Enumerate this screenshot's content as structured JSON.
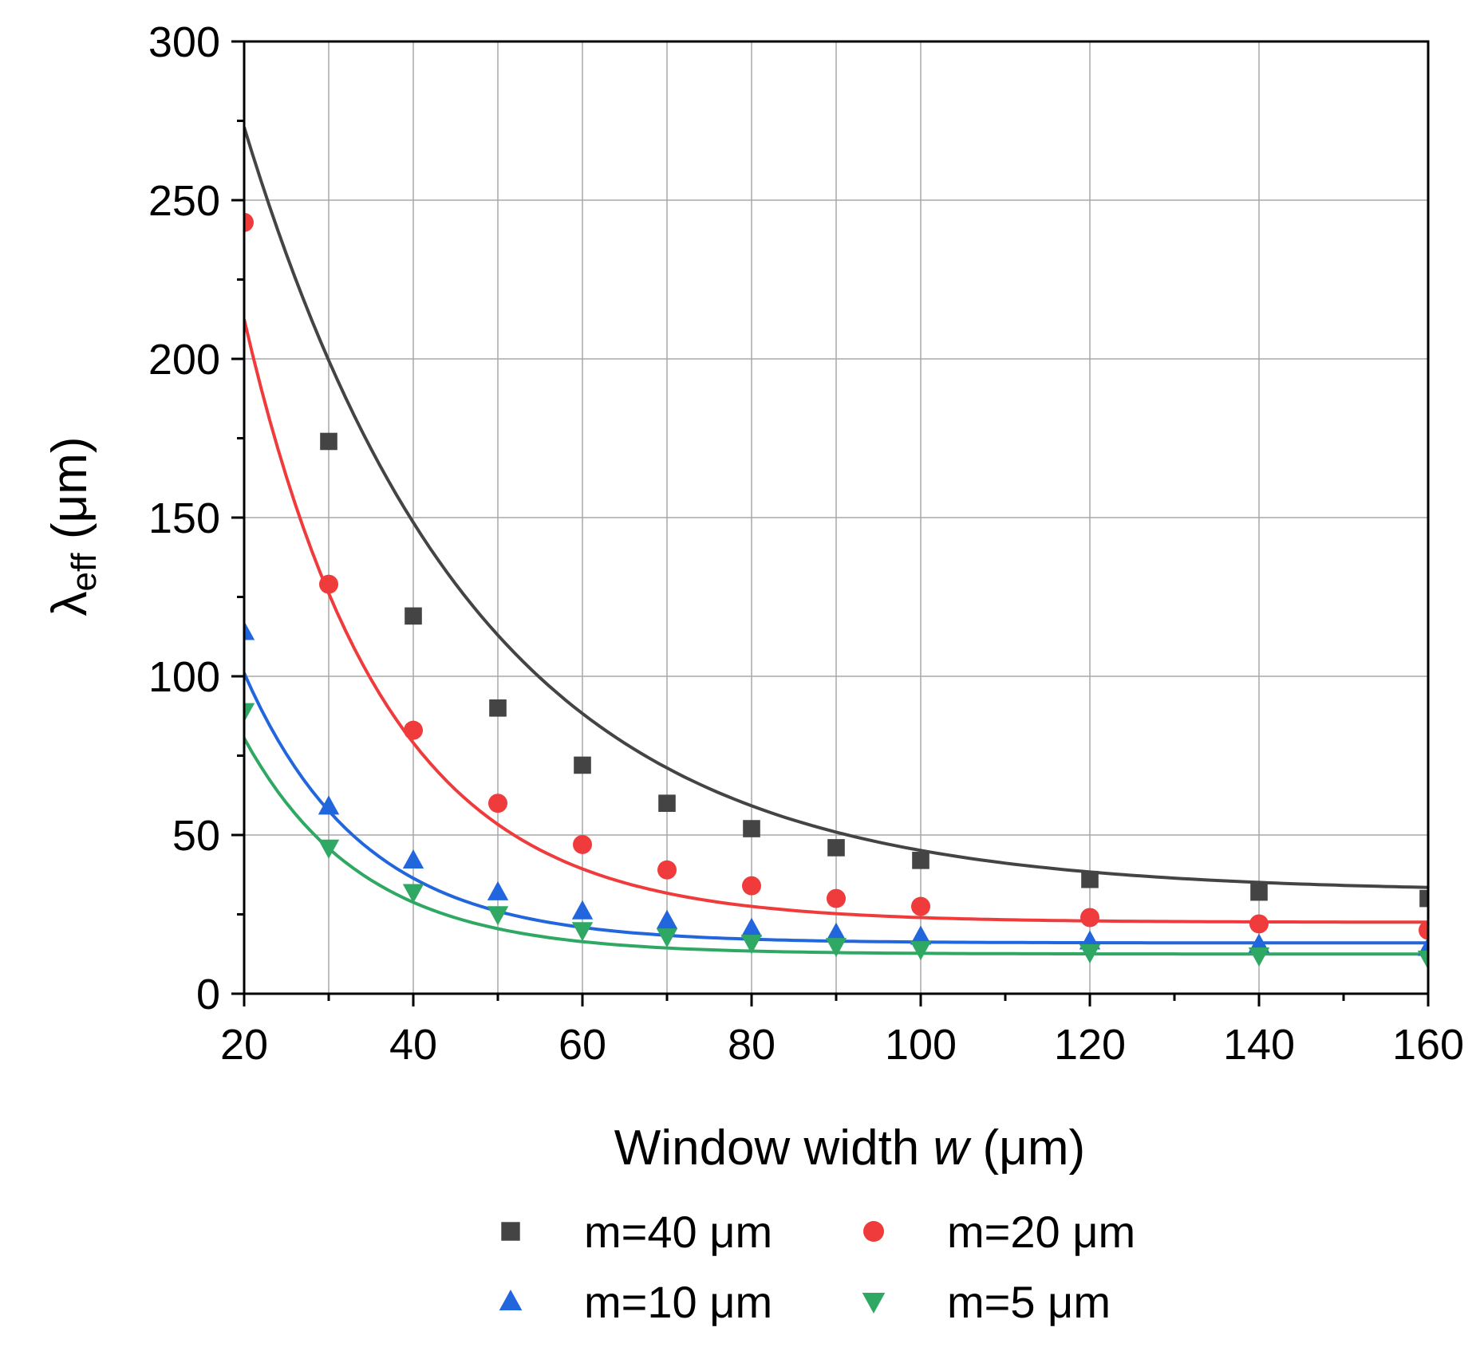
{
  "chart_data": {
    "type": "scatter",
    "title": "",
    "xlabel": "Window width",
    "xlabel_symbol": "w",
    "xlabel_unit": "(μm)",
    "ylabel": "λ",
    "ylabel_sub": "eff",
    "ylabel_unit": "(μm)",
    "xlim": [
      20,
      160
    ],
    "ylim": [
      0,
      300
    ],
    "xticks": [
      20,
      40,
      60,
      80,
      100,
      120,
      140,
      160
    ],
    "yticks": [
      0,
      50,
      100,
      150,
      200,
      250,
      300
    ],
    "grid": true,
    "legend_position": "bottom",
    "x": [
      20,
      30,
      40,
      50,
      60,
      70,
      80,
      90,
      100,
      120,
      140,
      160
    ],
    "series": [
      {
        "name": "m=40 μm",
        "marker": "square",
        "color": "#444444",
        "values": [
          null,
          174,
          119,
          90,
          72,
          60,
          52,
          46,
          42,
          36,
          32,
          30
        ],
        "fit": {
          "a": 241,
          "b": 27.5,
          "c": 32
        }
      },
      {
        "name": "m=20 μm",
        "marker": "circle",
        "color": "#ef3b3b",
        "values": [
          243,
          129,
          83,
          60,
          47,
          39,
          34,
          30,
          27.5,
          24,
          22,
          20
        ],
        "fit": {
          "a": 190,
          "b": 16.5,
          "c": 22.5
        }
      },
      {
        "name": "m=10 μm",
        "marker": "triangle-up",
        "color": "#2266dd",
        "values": [
          114,
          59,
          42,
          32,
          26,
          23,
          20.5,
          19,
          18,
          16.5,
          15.5,
          14.5
        ],
        "fit": {
          "a": 85,
          "b": 14,
          "c": 16
        }
      },
      {
        "name": "m=5 μm",
        "marker": "triangle-down",
        "color": "#2fa864",
        "values": [
          89,
          46,
          32,
          25,
          20,
          18,
          16,
          15,
          14,
          13,
          12,
          11
        ],
        "fit": {
          "a": 68,
          "b": 14,
          "c": 12.5
        }
      }
    ]
  }
}
